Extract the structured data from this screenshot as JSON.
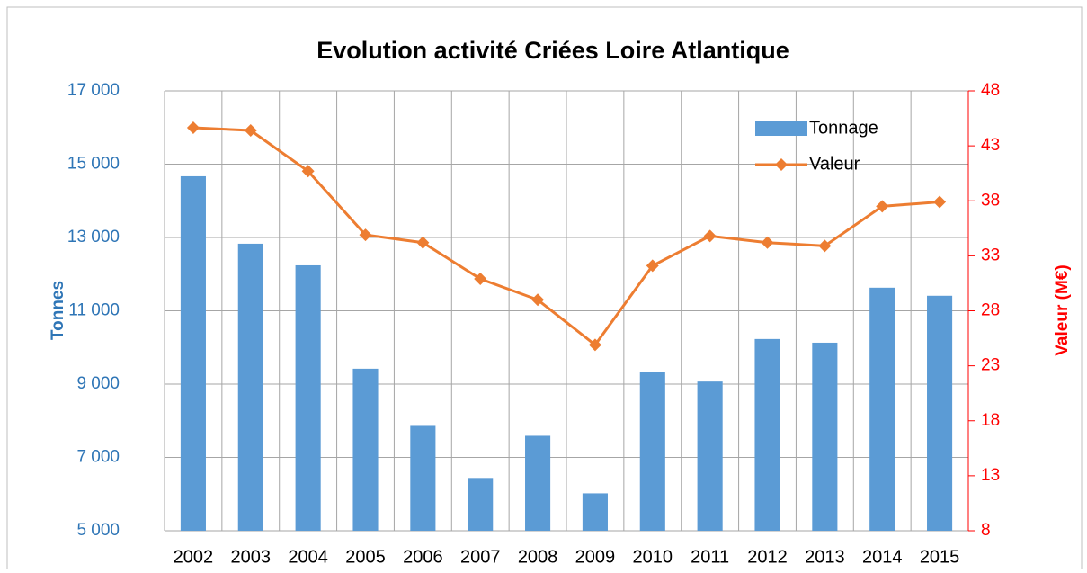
{
  "chart_data": {
    "type": "bar",
    "title": "Evolution activité Criées  Loire Atlantique",
    "categories": [
      "2002",
      "2003",
      "2004",
      "2005",
      "2006",
      "2007",
      "2008",
      "2009",
      "2010",
      "2011",
      "2012",
      "2013",
      "2014",
      "2015"
    ],
    "series": [
      {
        "name": "Tonnage",
        "type": "bar",
        "color": "#5b9bd5",
        "values": [
          14670,
          12830,
          12240,
          9420,
          7860,
          6440,
          7590,
          6020,
          9320,
          9070,
          10230,
          10130,
          11630,
          11410
        ]
      },
      {
        "name": "Valeur",
        "type": "line",
        "axis": "y2",
        "color": "#ed7d31",
        "values": [
          44.65,
          44.4,
          40.7,
          34.9,
          34.2,
          30.9,
          29.0,
          24.9,
          32.1,
          34.8,
          34.2,
          33.9,
          37.5,
          37.9
        ]
      }
    ],
    "ylabel": "Tonnes",
    "y2label": "Valeur (M€)",
    "ylim": [
      5000,
      17000
    ],
    "yticks": [
      {
        "value": 5000,
        "label": "5 000"
      },
      {
        "value": 7000,
        "label": "7 000"
      },
      {
        "value": 9000,
        "label": "9 000"
      },
      {
        "value": 11000,
        "label": "11 000"
      },
      {
        "value": 13000,
        "label": "13 000"
      },
      {
        "value": 15000,
        "label": "15 000"
      },
      {
        "value": 17000,
        "label": "17 000"
      }
    ],
    "y2lim": [
      8,
      48
    ],
    "y2ticks": [
      8,
      13,
      18,
      23,
      28,
      33,
      38,
      43,
      48
    ],
    "grid": true,
    "legend": "upper right"
  }
}
